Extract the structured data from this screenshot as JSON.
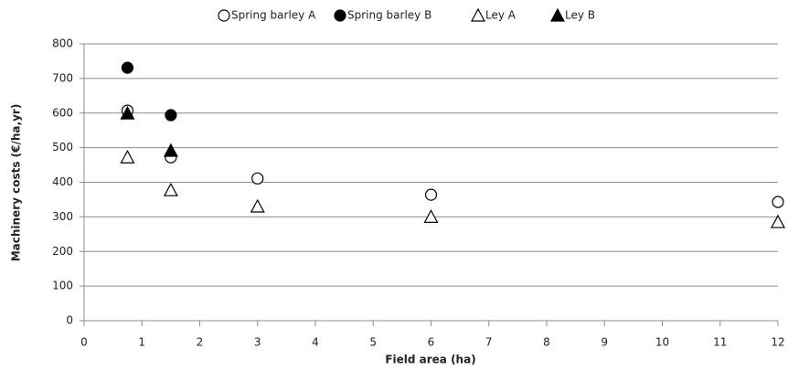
{
  "chart_data": {
    "type": "scatter",
    "x_label": "Field area (ha)",
    "y_label": "Machinery costs (€/ha,yr)",
    "xlim": [
      0,
      12
    ],
    "xticks": [
      0,
      1,
      2,
      3,
      4,
      5,
      6,
      7,
      8,
      9,
      10,
      11,
      12
    ],
    "ylim": [
      0,
      800
    ],
    "yticks": [
      0,
      100,
      200,
      300,
      400,
      500,
      600,
      700,
      800
    ],
    "grid": true,
    "legend": "top",
    "series": [
      {
        "name": "Spring barley A",
        "color": "#000000",
        "marker": "circle-open",
        "x": [
          0.75,
          1.5,
          3,
          6,
          12
        ],
        "values": [
          607,
          472,
          411,
          364,
          343
        ]
      },
      {
        "name": "Spring barley B",
        "color": "#000000",
        "marker": "circle-filled",
        "x": [
          0.75,
          1.5
        ],
        "values": [
          731,
          594
        ]
      },
      {
        "name": "Ley A",
        "color": "#000000",
        "marker": "triangle-open",
        "x": [
          0.75,
          1.5,
          3,
          6,
          12
        ],
        "values": [
          472,
          377,
          330,
          300,
          285
        ]
      },
      {
        "name": "Ley B",
        "color": "#000000",
        "marker": "triangle-filled",
        "x": [
          0.75,
          1.5
        ],
        "values": [
          599,
          491
        ]
      }
    ]
  }
}
